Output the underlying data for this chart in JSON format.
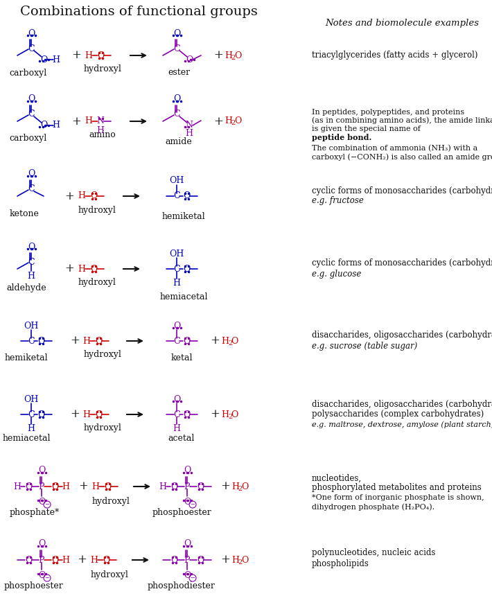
{
  "title": "Combinations of functional groups",
  "notes_header": "Notes and biomolecule examples",
  "blue": "#0000bb",
  "red": "#cc0000",
  "purple": "#8800aa",
  "black": "#111111",
  "bg": "#ffffff",
  "row_notes": [
    "triacylglycerides (fatty acids + glycerol)",
    "amide_special",
    "cyclic forms of monosaccharides (carbohydrates)\ne.g. fructose",
    "cyclic forms of monosaccharides (carbohydrates)\ne.g. glucose",
    "disaccharides, oligosaccharides (carbohydrates)\ne.g. sucrose (table sugar)",
    "disaccharides, oligosaccharides (carbohydrates)\npolysaccharides (complex carbohydrates)\ne.g. maltrose, dextrose, amylose (plant starch), cellulose",
    "phosphate_special",
    "polynucleotides, nucleic acids\nphospholipids"
  ]
}
